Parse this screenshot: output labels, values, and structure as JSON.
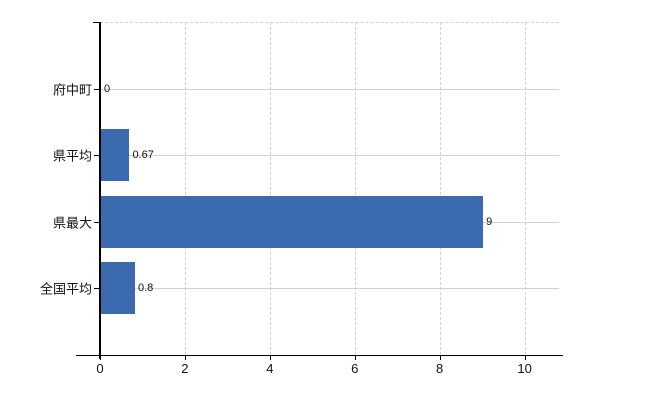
{
  "page": {
    "background": "#ffffff"
  },
  "chart_data": {
    "type": "bar",
    "orientation": "horizontal",
    "title": "",
    "xlabel": "",
    "ylabel": "",
    "categories": [
      "府中町",
      "県平均",
      "県最大",
      "全国平均"
    ],
    "values": [
      0,
      0.67,
      9,
      0.8
    ],
    "value_labels": [
      "0",
      "0.67",
      "9",
      "0.8"
    ],
    "x_ticks": [
      0,
      2,
      4,
      6,
      8,
      10
    ],
    "x_tick_labels": [
      "0",
      "2",
      "4",
      "6",
      "8",
      "10"
    ],
    "xlim": [
      0,
      10.81
    ],
    "bar_color": "#3b6bae",
    "grid": {
      "horizontal_style": "solid",
      "vertical_style": "dashed",
      "color": "#cdd4cd"
    },
    "axis_color": "#000000",
    "text_color": "#111111",
    "legend": null
  }
}
